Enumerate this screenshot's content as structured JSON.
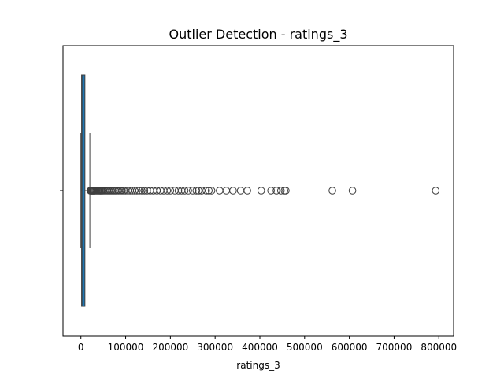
{
  "chart_data": {
    "type": "box",
    "title": "Outlier Detection - ratings_3",
    "xlabel": "ratings_3",
    "ylabel": "",
    "xlim": [
      -40000,
      833000
    ],
    "x_ticks": [
      0,
      100000,
      200000,
      300000,
      400000,
      500000,
      600000,
      700000,
      800000
    ],
    "x_tick_labels": [
      "0",
      "100000",
      "200000",
      "300000",
      "400000",
      "500000",
      "600000",
      "700000",
      "800000"
    ],
    "grid": false,
    "legend": "none",
    "box": {
      "q1": 1500,
      "median": 4000,
      "q3": 9000,
      "whisker_low": 0,
      "whisker_high": 20000,
      "color": "#1f77b4"
    },
    "outliers": [
      21000,
      22000,
      23000,
      24000,
      25000,
      26000,
      27000,
      28000,
      29000,
      30000,
      32000,
      34000,
      36000,
      38000,
      40000,
      42000,
      44000,
      46000,
      48000,
      50000,
      53000,
      56000,
      59000,
      62000,
      65000,
      68000,
      71000,
      74000,
      77000,
      80000,
      84000,
      88000,
      92000,
      96000,
      100000,
      105000,
      110000,
      115000,
      120000,
      125000,
      130000,
      136000,
      142000,
      148000,
      155000,
      162000,
      170000,
      178000,
      185000,
      193000,
      200000,
      210000,
      218000,
      225000,
      232000,
      240000,
      250000,
      258000,
      263000,
      270000,
      280000,
      286000,
      292000,
      310000,
      325000,
      340000,
      357000,
      372000,
      403000,
      425000,
      437000,
      447000,
      455000,
      458000,
      562000,
      607000,
      793000
    ]
  }
}
